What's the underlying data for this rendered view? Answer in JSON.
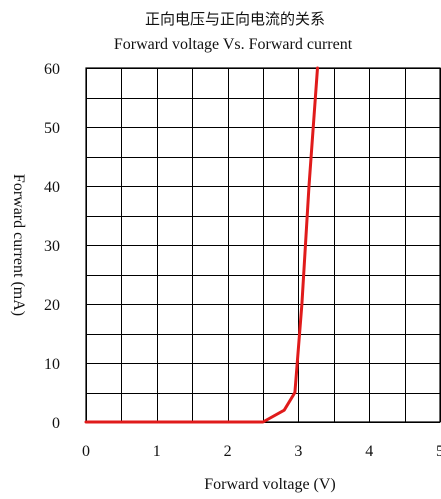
{
  "chart_data": {
    "type": "line",
    "title": "正向电压与正向电流的关系",
    "subtitle": "Forward voltage Vs. Forward current",
    "xlabel": "Forward voltage (V)",
    "ylabel": "Forward current (mA)",
    "xlim": [
      0,
      5
    ],
    "ylim": [
      0,
      60
    ],
    "xticks": [
      0,
      1,
      2,
      3,
      4,
      5
    ],
    "yticks": [
      0,
      10,
      20,
      30,
      40,
      50,
      60
    ],
    "grid": true,
    "minor_grid": true,
    "series": [
      {
        "color": "#e01b1b",
        "x": [
          0,
          2.5,
          2.8,
          2.95,
          3.05,
          3.15,
          3.27
        ],
        "y": [
          0,
          0,
          2,
          5,
          20,
          40,
          60
        ]
      }
    ]
  }
}
